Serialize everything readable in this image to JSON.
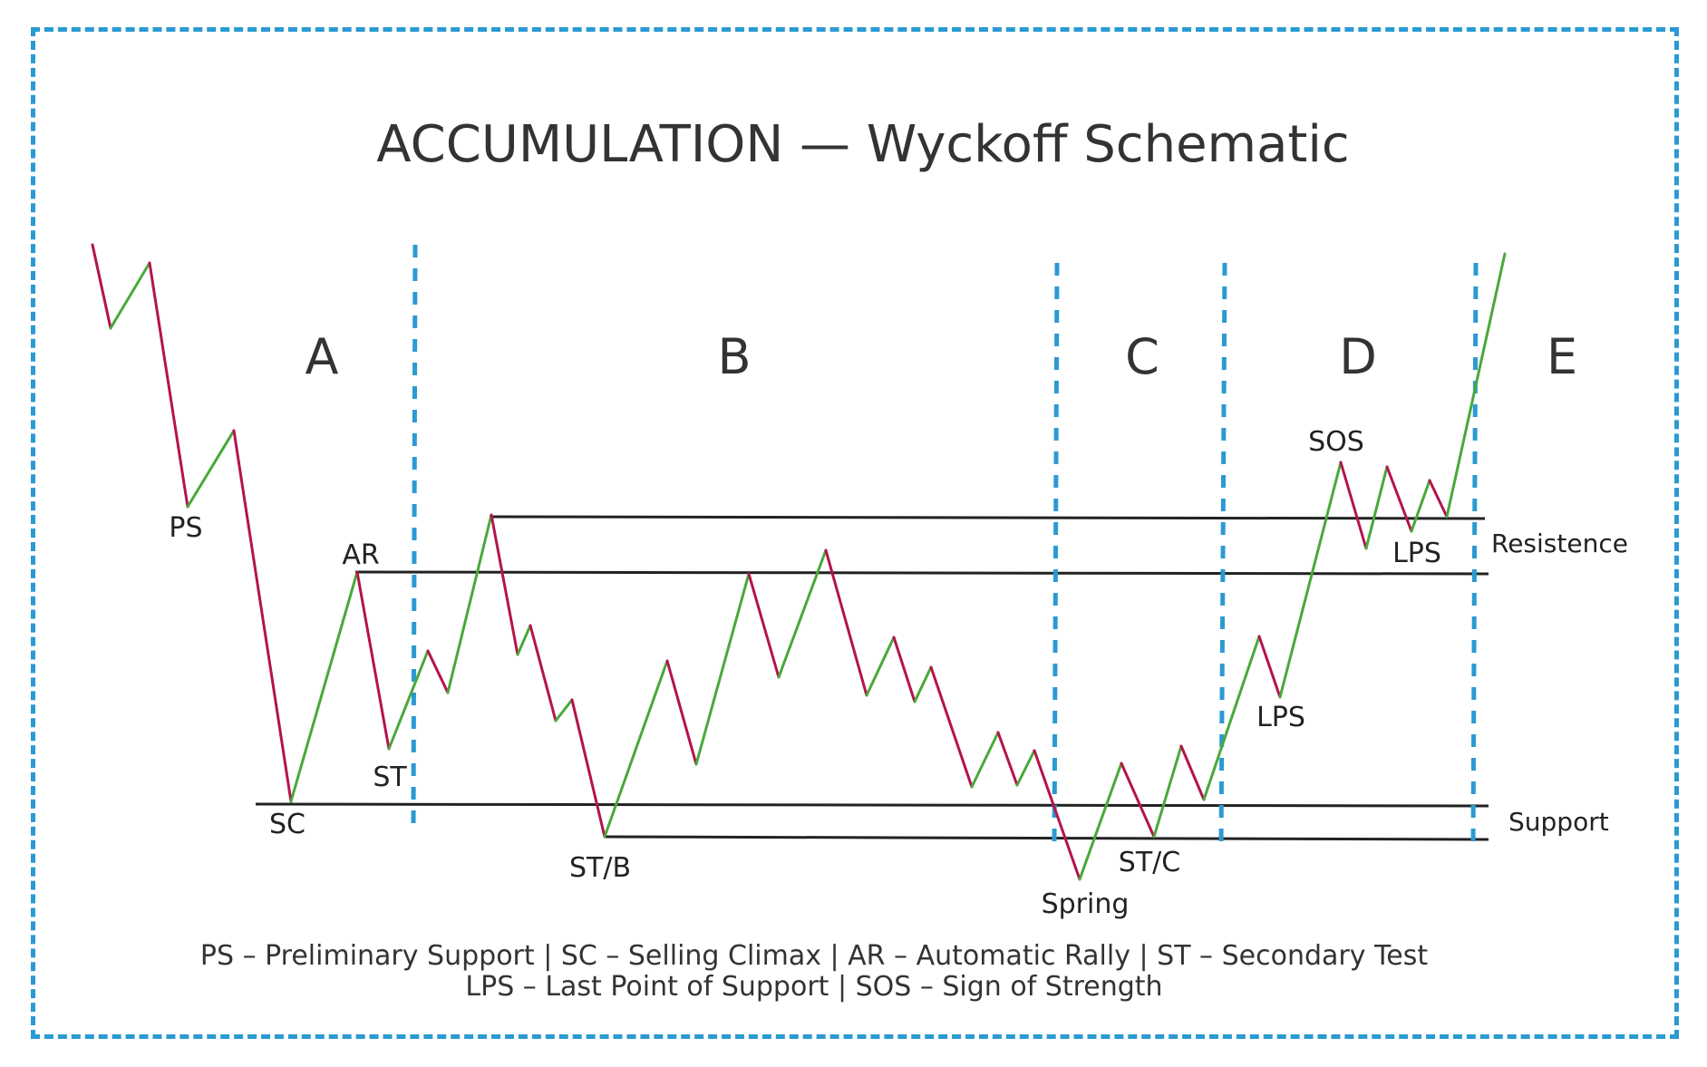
{
  "title": "ACCUMULATION — Wyckoff Schematic",
  "phases": [
    "A",
    "B",
    "C",
    "D",
    "E"
  ],
  "events": {
    "ps": "PS",
    "sc": "SC",
    "ar": "AR",
    "st": "ST",
    "st_b": "ST/B",
    "spring": "Spring",
    "st_c": "ST/C",
    "lps_d": "LPS",
    "sos": "SOS",
    "lps_e": "LPS"
  },
  "levels": {
    "resistance": "Resistence",
    "support": "Support"
  },
  "legend": {
    "line1": "PS – Preliminary Support | SC – Selling Climax | AR – Automatic Rally | ST – Secondary Test",
    "line2": "LPS – Last Point of Support | SOS – Sign of Strength"
  },
  "colors": {
    "frame": "#2b9ad3",
    "phase_divider": "#2b9ad3",
    "up_move": "#4aa83a",
    "down_move": "#b5134b",
    "level_line": "#222222"
  }
}
